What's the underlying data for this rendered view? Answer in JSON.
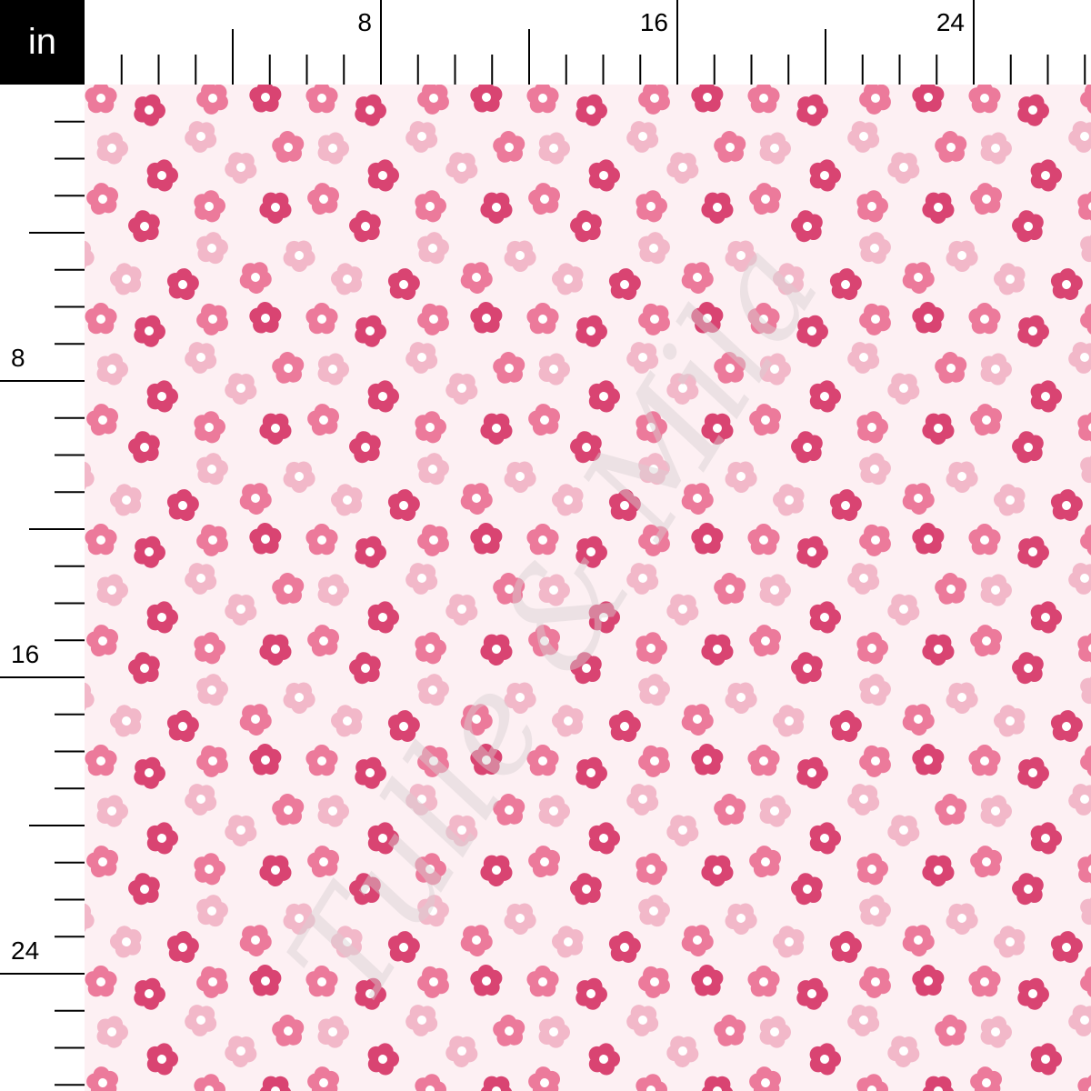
{
  "ruler": {
    "unit": "in",
    "horizontal_labels": [
      "8",
      "16",
      "24"
    ],
    "vertical_labels": [
      "8",
      "16",
      "24"
    ]
  },
  "fabric": {
    "background_color": "#fdf0f3",
    "flower_colors": {
      "dark": "#d94472",
      "medium": "#ec7a9b",
      "light": "#f2b8c9",
      "center": "#ffffff"
    },
    "watermark": "Tulle & Mila"
  }
}
